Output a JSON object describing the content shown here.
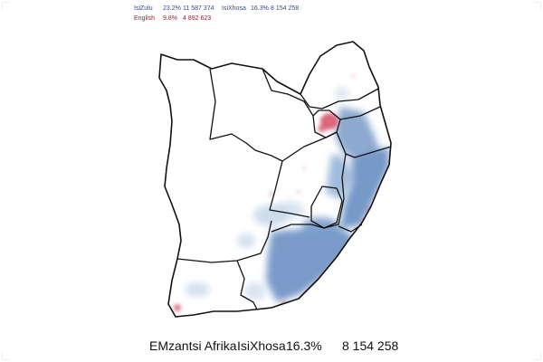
{
  "legend": {
    "rows": [
      {
        "language": "IsiZulu",
        "percent": "23.2%",
        "count": "11 587 374"
      },
      {
        "language": "English",
        "percent": "9.8%",
        "count": "4 892 623"
      },
      {
        "language": "IsiXhosa",
        "percent": "16.3%",
        "count": "8 154 258"
      }
    ]
  },
  "footer": {
    "region": "EMzantsi Afrika",
    "language": "IsiXhosa",
    "percent": "16.3%",
    "count": "8 154 258"
  },
  "colors": {
    "highlight_language": "#6f93c4",
    "light_density": "#c9d9ea",
    "english_points": "#d8566f",
    "province_borders": "#111111"
  }
}
